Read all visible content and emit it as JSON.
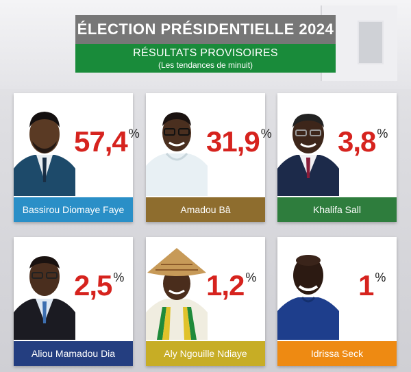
{
  "header": {
    "title": "ÉLECTION PRÉSIDENTIELLE 2024",
    "subtitle": "RÉSULTATS PROVISOIRES",
    "note": "(Les tendances de minuit)"
  },
  "candidates": [
    {
      "name": "Bassirou Diomaye Faye",
      "percent": "57,4",
      "sign": "%",
      "bar_color": "#2a8fc7"
    },
    {
      "name": "Amadou Bâ",
      "percent": "31,9",
      "sign": "%",
      "bar_color": "#8e6d2e"
    },
    {
      "name": "Khalifa Sall",
      "percent": "3,8",
      "sign": "%",
      "bar_color": "#2e7d3d"
    },
    {
      "name": "Aliou Mamadou Dia",
      "percent": "2,5",
      "sign": "%",
      "bar_color": "#243e80"
    },
    {
      "name": "Aly Ngouille Ndiaye",
      "percent": "1,2",
      "sign": "%",
      "bar_color": "#c7ad25"
    },
    {
      "name": "Idrissa Seck",
      "percent": "1",
      "sign": "%",
      "bar_color": "#ee8a12"
    }
  ]
}
